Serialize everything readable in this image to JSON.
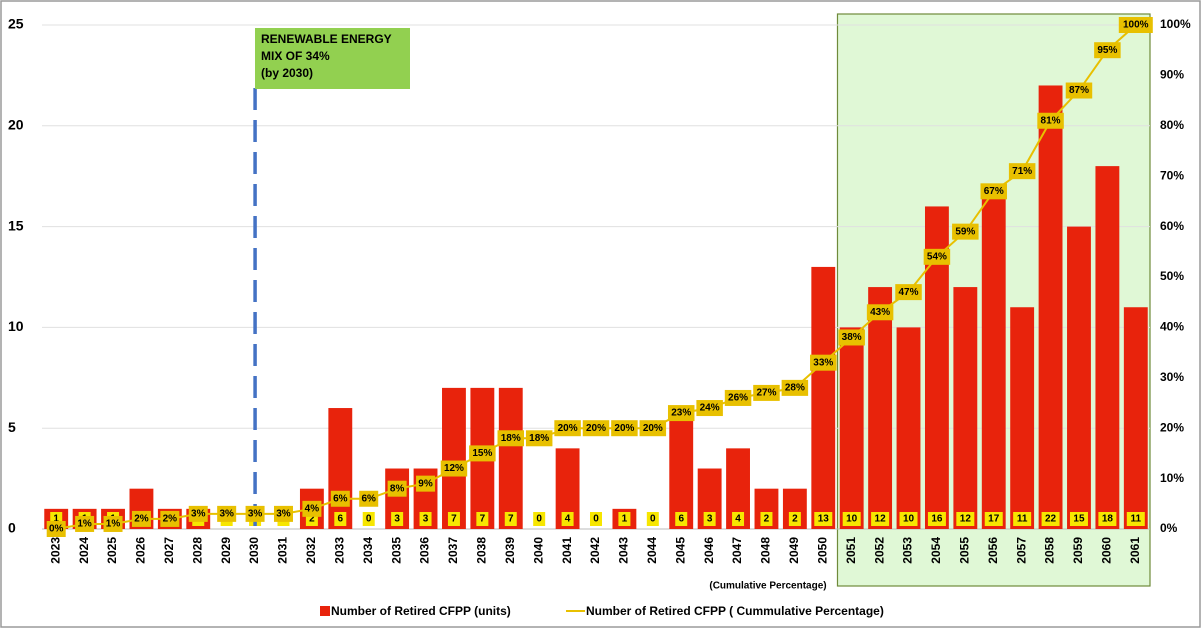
{
  "chart_data": {
    "type": "bar",
    "categories": [
      "2023",
      "2024",
      "2025",
      "2026",
      "2027",
      "2028",
      "2029",
      "2030",
      "2031",
      "2032",
      "2033",
      "2034",
      "2035",
      "2036",
      "2037",
      "2038",
      "2039",
      "2040",
      "2041",
      "2042",
      "2043",
      "2044",
      "2045",
      "2046",
      "2047",
      "2048",
      "2049",
      "2050",
      "2051",
      "2052",
      "2053",
      "2054",
      "2055",
      "2056",
      "2057",
      "2058",
      "2059",
      "2060",
      "2061"
    ],
    "series": [
      {
        "name": "Number of Retired CFPP (units)",
        "type": "bar",
        "color": "#e8230c",
        "values": [
          1,
          1,
          1,
          2,
          1,
          1,
          0,
          0,
          0,
          2,
          6,
          0,
          3,
          3,
          7,
          7,
          7,
          0,
          4,
          0,
          1,
          0,
          6,
          3,
          4,
          2,
          2,
          13,
          10,
          12,
          10,
          16,
          12,
          17,
          11,
          22,
          15,
          18,
          11
        ]
      },
      {
        "name": "Number of Retired CFPP ( Cummulative Percentage)",
        "type": "line",
        "axis": "y2",
        "color": "#e8c000",
        "values": [
          0,
          1,
          1,
          2,
          2,
          3,
          3,
          3,
          3,
          4,
          6,
          6,
          8,
          9,
          12,
          15,
          18,
          18,
          20,
          20,
          20,
          20,
          23,
          24,
          26,
          27,
          28,
          33,
          38,
          43,
          47,
          54,
          59,
          67,
          71,
          81,
          87,
          95,
          100
        ],
        "value_labels": [
          "0%",
          "1%",
          "1%",
          "2%",
          "2%",
          "3%",
          "3%",
          "3%",
          "3%",
          "4%",
          "6%",
          "6%",
          "8%",
          "9%",
          "12%",
          "15%",
          "18%",
          "18%",
          "20%",
          "20%",
          "20%",
          "20%",
          "23%",
          "24%",
          "26%",
          "27%",
          "28%",
          "33%",
          "38%",
          "43%",
          "47%",
          "54%",
          "59%",
          "67%",
          "71%",
          "81%",
          "87%",
          "95%",
          "100%"
        ]
      }
    ],
    "ylim": [
      0,
      25
    ],
    "yticks": [
      0,
      5,
      10,
      15,
      20,
      25
    ],
    "y2lim": [
      0,
      100
    ],
    "y2ticks": [
      {
        "value": 0,
        "label": "0%"
      },
      {
        "value": 10,
        "label": "10%"
      },
      {
        "value": 20,
        "label": "20%"
      },
      {
        "value": 30,
        "label": "30%"
      },
      {
        "value": 40,
        "label": "40%"
      },
      {
        "value": 50,
        "label": "50%"
      },
      {
        "value": 60,
        "label": "60%"
      },
      {
        "value": 70,
        "label": "70%"
      },
      {
        "value": 80,
        "label": "80%"
      },
      {
        "value": 90,
        "label": "90%"
      },
      {
        "value": 100,
        "label": "100%"
      }
    ],
    "grid": true,
    "legend": "bottom",
    "annotation": {
      "lines": [
        "RENEWABLE ENERGY",
        "MIX OF 34%",
        "(by 2030)"
      ],
      "category": "2030"
    },
    "highlight": {
      "from": "2051",
      "to": "2061"
    },
    "axis_note": "(Cumulative Percentage)"
  }
}
